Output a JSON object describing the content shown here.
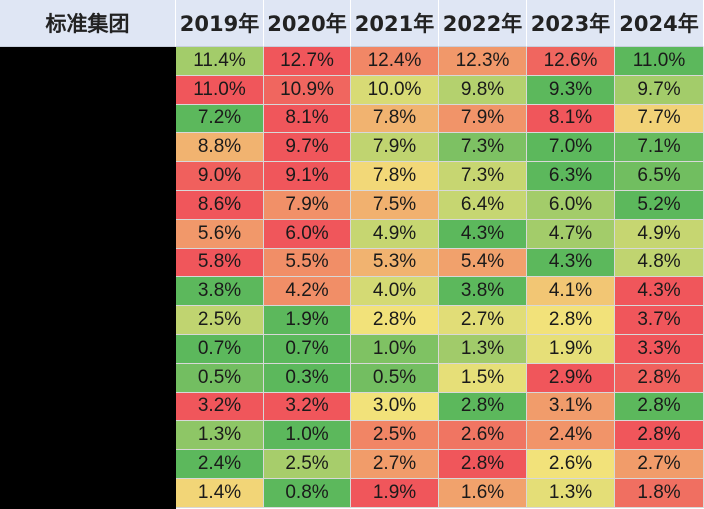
{
  "table": {
    "corner_label": "标准集团",
    "years": [
      "2019年",
      "2020年",
      "2021年",
      "2022年",
      "2023年",
      "2024年"
    ]
  },
  "colors": {
    "header_bg": "#dfe6f4",
    "row_label_bg": "#000000",
    "scale_low": "#5cb85c",
    "scale_mid": "#f2e27a",
    "scale_high": "#f0565b"
  },
  "chart_data": {
    "type": "table",
    "title": "",
    "columns": [
      "2019年",
      "2020年",
      "2021年",
      "2022年",
      "2023年",
      "2024年"
    ],
    "heatmap_coloring": "per-row, red = highest, green = lowest",
    "rows": [
      [
        "11.4%",
        "12.7%",
        "12.4%",
        "12.3%",
        "12.6%",
        "11.0%"
      ],
      [
        "11.0%",
        "10.9%",
        "10.0%",
        "9.8%",
        "9.3%",
        "9.7%"
      ],
      [
        "7.2%",
        "8.1%",
        "7.8%",
        "7.9%",
        "8.1%",
        "7.7%"
      ],
      [
        "8.8%",
        "9.7%",
        "7.9%",
        "7.3%",
        "7.0%",
        "7.1%"
      ],
      [
        "9.0%",
        "9.1%",
        "7.8%",
        "7.3%",
        "6.3%",
        "6.5%"
      ],
      [
        "8.6%",
        "7.9%",
        "7.5%",
        "6.4%",
        "6.0%",
        "5.2%"
      ],
      [
        "5.6%",
        "6.0%",
        "4.9%",
        "4.3%",
        "4.7%",
        "4.9%"
      ],
      [
        "5.8%",
        "5.5%",
        "5.3%",
        "5.4%",
        "4.3%",
        "4.8%"
      ],
      [
        "3.8%",
        "4.2%",
        "4.0%",
        "3.8%",
        "4.1%",
        "4.3%"
      ],
      [
        "2.5%",
        "1.9%",
        "2.8%",
        "2.7%",
        "2.8%",
        "3.7%"
      ],
      [
        "0.7%",
        "0.7%",
        "1.0%",
        "1.3%",
        "1.9%",
        "3.3%"
      ],
      [
        "0.5%",
        "0.3%",
        "0.5%",
        "1.5%",
        "2.9%",
        "2.8%"
      ],
      [
        "3.2%",
        "3.2%",
        "3.0%",
        "2.8%",
        "3.1%",
        "2.8%"
      ],
      [
        "1.3%",
        "1.0%",
        "2.5%",
        "2.6%",
        "2.4%",
        "2.8%"
      ],
      [
        "2.4%",
        "2.5%",
        "2.7%",
        "2.8%",
        "2.6%",
        "2.7%"
      ],
      [
        "1.4%",
        "0.8%",
        "1.9%",
        "1.6%",
        "1.3%",
        "1.8%"
      ]
    ]
  }
}
